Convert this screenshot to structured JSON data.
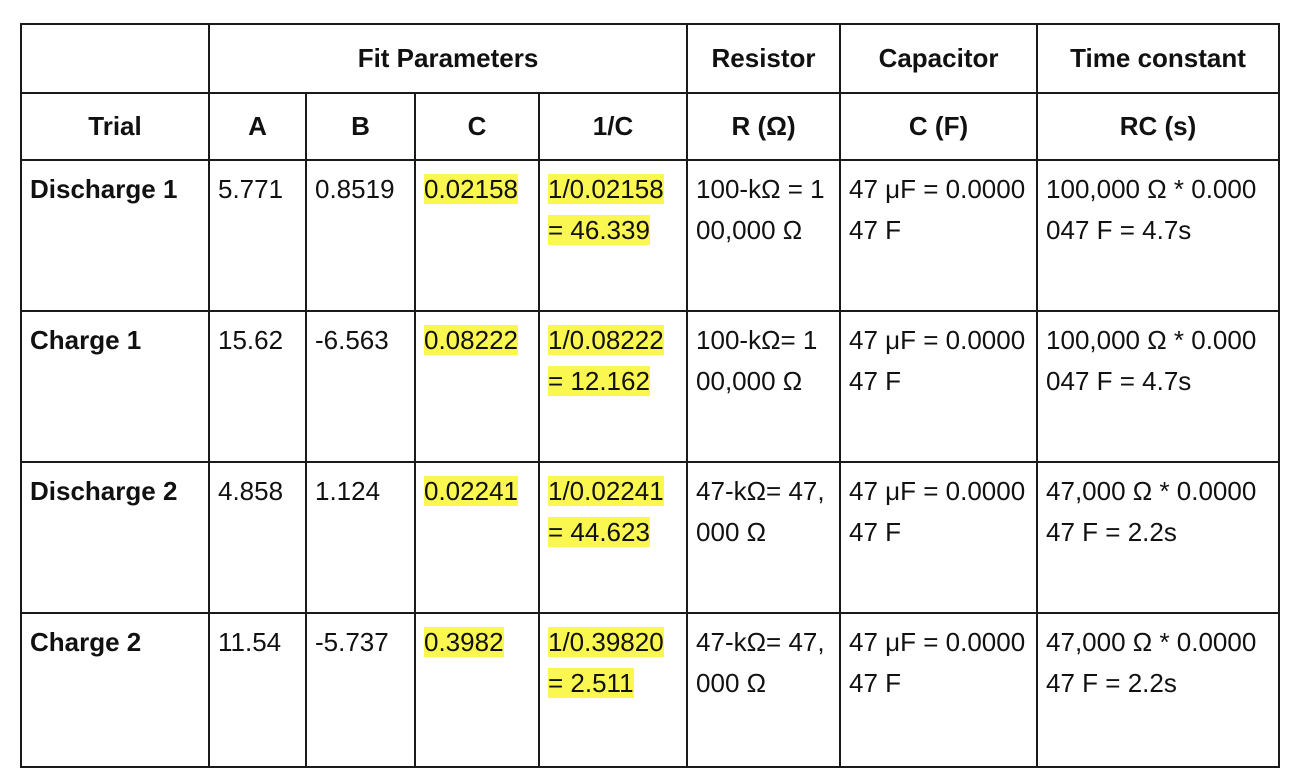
{
  "header": {
    "fit_parameters": "Fit Parameters",
    "resistor": "Resistor",
    "capacitor": "Capacitor",
    "time_constant": "Time constant"
  },
  "columns": {
    "trial": "Trial",
    "a": "A",
    "b": "B",
    "c": "C",
    "inv_c": "1/C",
    "r": "R (Ω)",
    "cap": "C (F)",
    "rc": "RC (s)"
  },
  "highlight_color": "#fbf751",
  "rows": [
    {
      "trial": "Discharge 1",
      "a": "5.771",
      "b": "0.8519",
      "c": "0.02158",
      "inv_c": "1/0.02158 = 46.339",
      "r": "100-kΩ = 100,000 Ω",
      "cap": "47 μF = 0.000047 F",
      "rc": "100,000 Ω * 0.000047 F = 4.7s"
    },
    {
      "trial": "Charge 1",
      "a": "15.62",
      "b": "-6.563",
      "c": "0.08222",
      "inv_c": "1/0.08222 = 12.162",
      "r": "100-kΩ= 100,000 Ω",
      "cap": "47 μF = 0.000047 F",
      "rc": "100,000 Ω * 0.000047 F = 4.7s"
    },
    {
      "trial": "Discharge 2",
      "a": "4.858",
      "b": "1.124",
      "c": "0.02241",
      "inv_c": "1/0.02241 = 44.623",
      "r": "47-kΩ= 47,000 Ω",
      "cap": "47 μF = 0.000047 F",
      "rc": "47,000 Ω * 0.000047 F = 2.2s"
    },
    {
      "trial": "Charge 2",
      "a": "11.54",
      "b": "-5.737",
      "c": "0.3982",
      "inv_c": "1/0.39820 = 2.511",
      "r": "47-kΩ= 47,000 Ω",
      "cap": "47 μF = 0.000047 F",
      "rc": "47,000 Ω * 0.000047 F = 2.2s"
    }
  ]
}
